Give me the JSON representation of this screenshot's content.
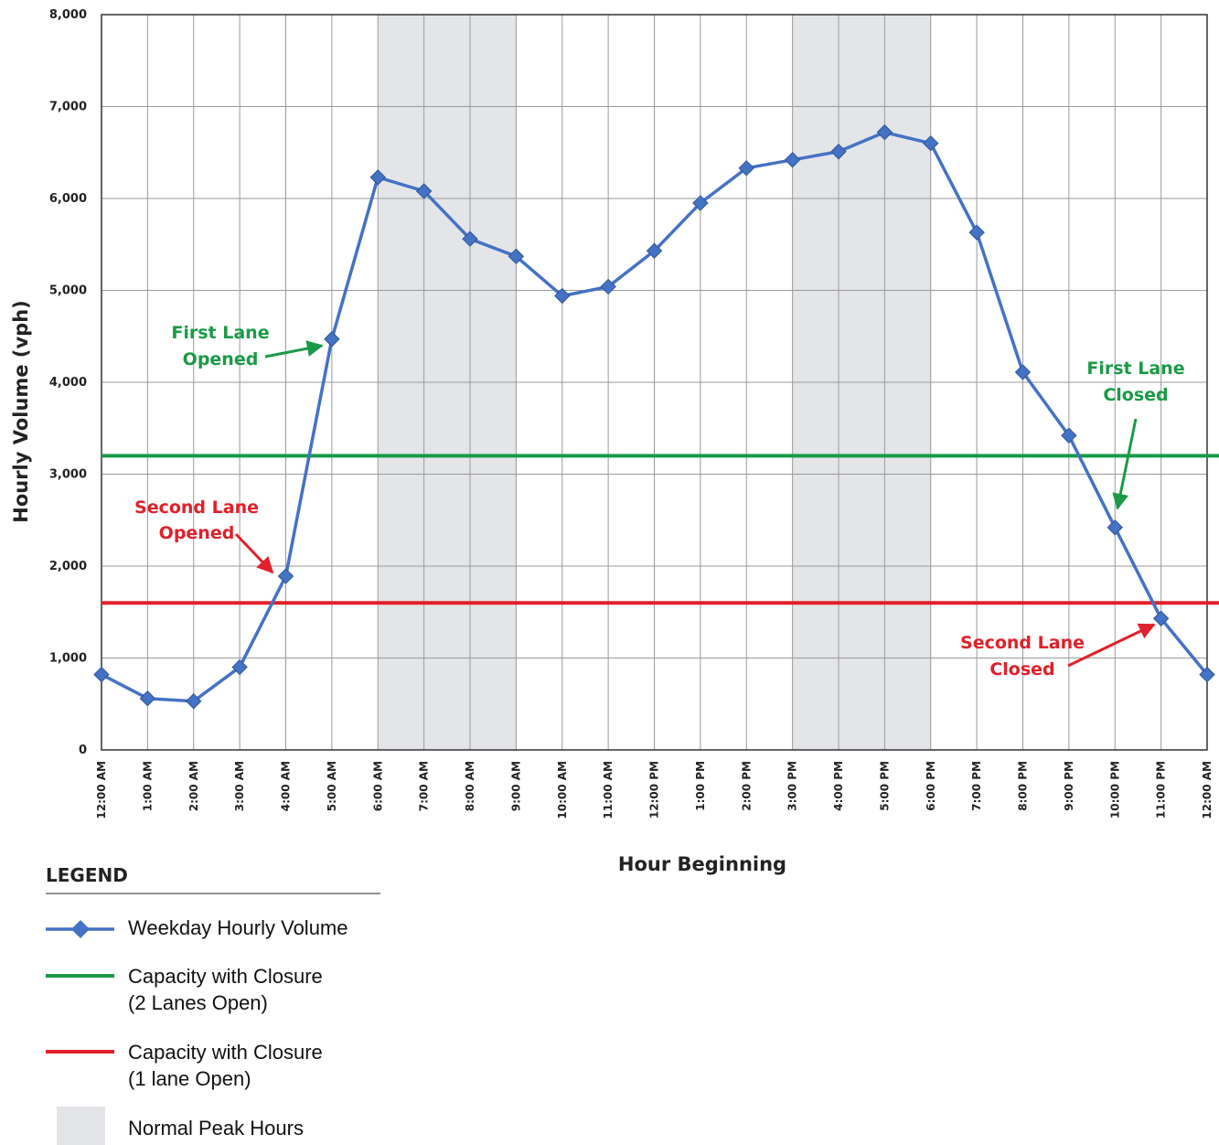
{
  "chart_data": {
    "type": "line",
    "xlabel": "Hour Beginning",
    "ylabel": "Hourly Volume (vph)",
    "ylim": [
      0,
      8000
    ],
    "y_ticks": [
      "0",
      "1,000",
      "2,000",
      "3,000",
      "4,000",
      "5,000",
      "6,000",
      "7,000",
      "8,000"
    ],
    "y_tick_values": [
      0,
      1000,
      2000,
      3000,
      4000,
      5000,
      6000,
      7000,
      8000
    ],
    "grid": true,
    "categories": [
      "12:00 AM",
      "1:00 AM",
      "2:00 AM",
      "3:00 AM",
      "4:00 AM",
      "5:00 AM",
      "6:00 AM",
      "7:00 AM",
      "8:00 AM",
      "9:00 AM",
      "10:00 AM",
      "11:00 AM",
      "12:00 PM",
      "1:00 PM",
      "2:00 PM",
      "3:00 PM",
      "4:00 PM",
      "5:00 PM",
      "6:00 PM",
      "7:00 PM",
      "8:00 PM",
      "9:00 PM",
      "10:00 PM",
      "11:00 PM",
      "12:00 AM"
    ],
    "series": [
      {
        "name": "Weekday Hourly Volume",
        "color": "#4472c4",
        "marker": "diamond",
        "values": [
          820,
          560,
          530,
          900,
          1890,
          4470,
          6230,
          6080,
          5560,
          5370,
          4940,
          5040,
          5430,
          5950,
          6330,
          6420,
          6510,
          6720,
          6600,
          5630,
          4110,
          3420,
          2420,
          1430,
          820
        ]
      }
    ],
    "reference_lines": [
      {
        "name": "Capacity with Closure\n(2 Lanes Open)",
        "value": 3200,
        "color": "#1a9a46"
      },
      {
        "name": "Capacity with Closure\n(1 lane Open)",
        "value": 1600,
        "color": "#e0202a"
      }
    ],
    "shaded_bands": [
      {
        "name": "Normal Peak Hours",
        "from_category": 6,
        "to_category": 9,
        "color": "#e4e5e8"
      },
      {
        "name": "Normal Peak Hours",
        "from_category": 15,
        "to_category": 18,
        "color": "#e4e5e8"
      }
    ],
    "annotations": [
      {
        "text": "First Lane\nOpened",
        "color": "#1a9a46",
        "points_to_category": 5
      },
      {
        "text": "Second Lane\nOpened",
        "color": "#e0202a",
        "points_to_category": 4
      },
      {
        "text": "First Lane\nClosed",
        "color": "#1a9a46",
        "points_to_category": 22
      },
      {
        "text": "Second Lane\nClosed",
        "color": "#e0202a",
        "points_to_category": 23
      }
    ],
    "legend": {
      "title": "LEGEND",
      "position": "bottom-left",
      "entries": [
        {
          "label": "Weekday Hourly Volume",
          "kind": "line-marker",
          "color": "#4472c4"
        },
        {
          "label": "Capacity with Closure\n(2 Lanes Open)",
          "kind": "line",
          "color": "#1a9a46"
        },
        {
          "label": "Capacity with Closure\n(1 lane Open)",
          "kind": "line",
          "color": "#e0202a"
        },
        {
          "label": "Normal Peak Hours",
          "kind": "box",
          "color": "#e4e5e8"
        }
      ]
    }
  }
}
